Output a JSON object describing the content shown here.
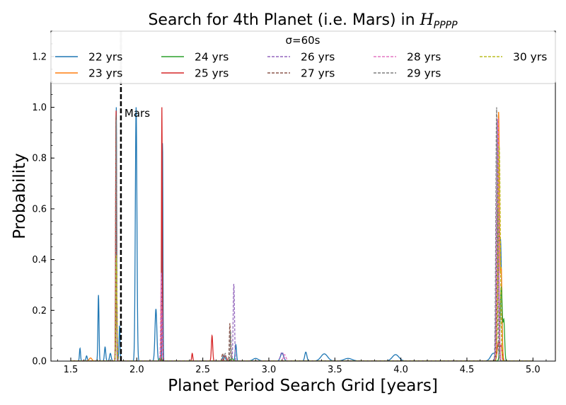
{
  "chart_data": {
    "type": "line",
    "title": "Search for 4th Planet (i.e. Mars) in ",
    "title_math": "H",
    "title_math_sub": "PPPP",
    "xlabel": "Planet Period Search Grid [years]",
    "ylabel": "Probability",
    "xlim": [
      1.35,
      5.17
    ],
    "ylim": [
      0,
      1.3
    ],
    "xticks": [
      1.5,
      2.0,
      2.5,
      3.0,
      3.5,
      4.0,
      4.5,
      5.0
    ],
    "xtick_labels": [
      "1.5",
      "2.0",
      "2.5",
      "3.0",
      "3.5",
      "4.0",
      "4.5",
      "5.0"
    ],
    "yticks": [
      0.0,
      0.2,
      0.4,
      0.6,
      0.8,
      1.0,
      1.2
    ],
    "ytick_labels": [
      "0.0",
      "0.2",
      "0.4",
      "0.6",
      "0.8",
      "1.0",
      "1.2"
    ],
    "legend_title": "σ=60s",
    "legend_placement": "top",
    "grid": false,
    "annotation": {
      "text": "Mars",
      "x": 1.88,
      "y": 0.96
    },
    "vlines": [
      {
        "x": 1.88,
        "style": "dashed",
        "color": "#000000"
      },
      {
        "x": 1.88,
        "style": "solid",
        "color": "#bbbbbb",
        "range": [
          1.1,
          1.3
        ]
      }
    ],
    "series": [
      {
        "name": "22 yrs",
        "color": "#1f77b4",
        "dash": "solid",
        "peaks": [
          [
            1.57,
            0.05,
            0.004
          ],
          [
            1.62,
            0.02,
            0.005
          ],
          [
            1.71,
            0.26,
            0.004
          ],
          [
            1.76,
            0.055,
            0.005
          ],
          [
            1.8,
            0.03,
            0.006
          ],
          [
            1.845,
            1.0,
            0.003
          ],
          [
            1.87,
            0.14,
            0.004
          ],
          [
            1.995,
            1.0,
            0.006
          ],
          [
            2.145,
            0.205,
            0.007
          ],
          [
            2.195,
            0.87,
            0.003
          ],
          [
            2.66,
            0.02,
            0.01
          ],
          [
            2.75,
            0.065,
            0.005
          ],
          [
            2.9,
            0.01,
            0.02
          ],
          [
            3.1,
            0.03,
            0.012
          ],
          [
            3.28,
            0.035,
            0.008
          ],
          [
            3.42,
            0.028,
            0.025
          ],
          [
            3.6,
            0.01,
            0.03
          ],
          [
            3.96,
            0.025,
            0.025
          ],
          [
            4.7,
            0.03,
            0.02
          ],
          [
            4.735,
            0.6,
            0.008
          ],
          [
            4.755,
            0.45,
            0.008
          ]
        ]
      },
      {
        "name": "23 yrs",
        "color": "#ff7f0e",
        "dash": "solid",
        "peaks": [
          [
            1.65,
            0.012,
            0.01
          ],
          [
            1.846,
            0.42,
            0.004
          ],
          [
            2.19,
            0.2,
            0.004
          ],
          [
            4.74,
            0.98,
            0.007
          ],
          [
            4.76,
            0.35,
            0.006
          ]
        ]
      },
      {
        "name": "24 yrs",
        "color": "#2ca02c",
        "dash": "solid",
        "peaks": [
          [
            1.846,
            0.42,
            0.004
          ],
          [
            2.18,
            0.02,
            0.006
          ],
          [
            2.72,
            0.01,
            0.01
          ],
          [
            4.76,
            0.29,
            0.008
          ],
          [
            4.78,
            0.15,
            0.006
          ]
        ]
      },
      {
        "name": "25 yrs",
        "color": "#d62728",
        "dash": "solid",
        "peaks": [
          [
            1.843,
            1.0,
            0.003
          ],
          [
            2.19,
            1.0,
            0.003
          ],
          [
            2.42,
            0.03,
            0.004
          ],
          [
            2.57,
            0.1,
            0.005
          ],
          [
            2.67,
            0.02,
            0.01
          ],
          [
            4.74,
            0.075,
            0.01
          ],
          [
            4.76,
            0.05,
            0.006
          ]
        ]
      },
      {
        "name": "26 yrs",
        "color": "#9467bd",
        "dash": "dashed",
        "peaks": [
          [
            1.846,
            0.4,
            0.004
          ],
          [
            2.19,
            0.2,
            0.004
          ],
          [
            2.735,
            0.305,
            0.005
          ],
          [
            3.1,
            0.035,
            0.012
          ],
          [
            4.73,
            0.95,
            0.007
          ]
        ]
      },
      {
        "name": "27 yrs",
        "color": "#8c564b",
        "dash": "dashed",
        "peaks": [
          [
            1.843,
            0.98,
            0.003
          ],
          [
            2.65,
            0.03,
            0.005
          ],
          [
            2.705,
            0.15,
            0.004
          ],
          [
            4.735,
            0.6,
            0.007
          ]
        ]
      },
      {
        "name": "28 yrs",
        "color": "#e377c2",
        "dash": "dashed",
        "peaks": [
          [
            1.846,
            0.4,
            0.004
          ],
          [
            2.185,
            0.35,
            0.004
          ],
          [
            3.12,
            0.025,
            0.01
          ],
          [
            4.735,
            0.96,
            0.007
          ]
        ]
      },
      {
        "name": "29 yrs",
        "color": "#7f7f7f",
        "dash": "dashed",
        "peaks": [
          [
            1.845,
            0.95,
            0.003
          ],
          [
            2.67,
            0.03,
            0.006
          ],
          [
            2.71,
            0.12,
            0.004
          ],
          [
            4.725,
            1.0,
            0.006
          ]
        ]
      },
      {
        "name": "30 yrs",
        "color": "#bcbd22",
        "dash": "dashed",
        "peaks": [
          [
            1.846,
            0.42,
            0.004
          ],
          [
            4.745,
            0.85,
            0.008
          ]
        ]
      }
    ]
  }
}
